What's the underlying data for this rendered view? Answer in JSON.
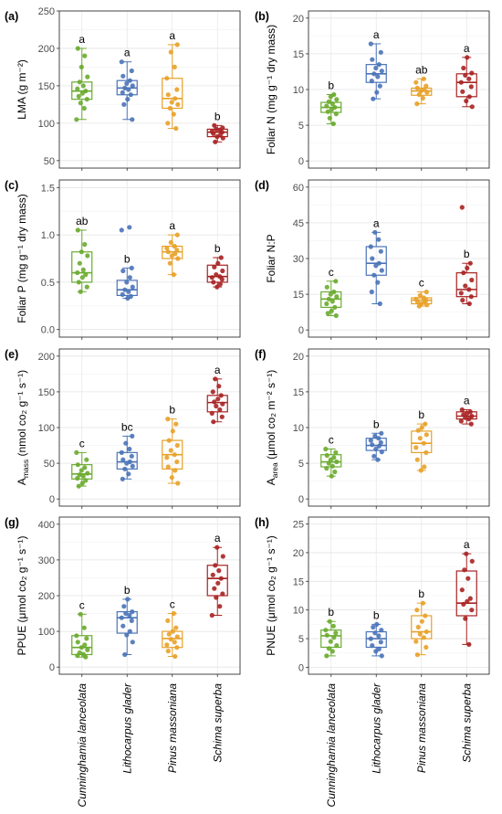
{
  "species": [
    "Cunninghamia lanceolata",
    "Lithocarpus glader",
    "Pinus massoniana",
    "Schima superba"
  ],
  "colors": [
    "#6aab2f",
    "#4a73b8",
    "#e8a128",
    "#a82222"
  ],
  "chart_data": [
    {
      "type": "box",
      "panel_label": "(a)",
      "ylabel": "LMA (g m⁻²)",
      "ylim": [
        40,
        250
      ],
      "yticks": [
        50,
        100,
        150,
        200,
        250
      ],
      "categories": [
        "Cunninghamia lanceolata",
        "Lithocarpus glader",
        "Pinus massoniana",
        "Schima superba"
      ],
      "boxes": [
        {
          "min": 105,
          "q1": 132,
          "median": 143,
          "q3": 155,
          "max": 200
        },
        {
          "min": 105,
          "q1": 138,
          "median": 147,
          "q3": 157,
          "max": 182
        },
        {
          "min": 93,
          "q1": 120,
          "median": 133,
          "q3": 160,
          "max": 205
        },
        {
          "min": 75,
          "q1": 82,
          "median": 88,
          "q3": 92,
          "max": 97
        }
      ],
      "letters": [
        "a",
        "a",
        "a",
        "b"
      ],
      "points": [
        [
          105,
          120,
          127,
          132,
          136,
          140,
          143,
          146,
          150,
          155,
          162,
          175,
          190,
          200
        ],
        [
          105,
          125,
          132,
          138,
          141,
          145,
          147,
          150,
          153,
          157,
          163,
          170,
          182
        ],
        [
          93,
          100,
          112,
          120,
          125,
          128,
          133,
          138,
          145,
          160,
          175,
          195,
          205
        ],
        [
          75,
          80,
          82,
          84,
          86,
          88,
          89,
          91,
          92,
          94,
          97
        ]
      ]
    },
    {
      "type": "box",
      "panel_label": "(b)",
      "ylabel": "Foliar N (mg g⁻¹ dry mass)",
      "ylim": [
        -1,
        21
      ],
      "yticks": [
        0,
        5,
        10,
        15,
        20
      ],
      "categories": [
        "Cunninghamia lanceolata",
        "Lithocarpus glader",
        "Pinus massoniana",
        "Schima superba"
      ],
      "boxes": [
        {
          "min": 5.2,
          "q1": 6.8,
          "median": 7.5,
          "q3": 8.2,
          "max": 9.3
        },
        {
          "min": 8.7,
          "q1": 11,
          "median": 12.2,
          "q3": 13.5,
          "max": 16.4
        },
        {
          "min": 8,
          "q1": 9.2,
          "median": 9.8,
          "q3": 10.2,
          "max": 11.5
        },
        {
          "min": 7.6,
          "q1": 9,
          "median": 11,
          "q3": 12.2,
          "max": 14.5
        }
      ],
      "letters": [
        "b",
        "a",
        "ab",
        "a"
      ],
      "points": [
        [
          5.2,
          6.0,
          6.6,
          6.9,
          7.2,
          7.5,
          7.7,
          8.0,
          8.3,
          8.6,
          9.0,
          9.3
        ],
        [
          8.7,
          9.6,
          10.5,
          11.2,
          11.8,
          12.2,
          12.6,
          13.0,
          13.5,
          14.2,
          15.2,
          16.4
        ],
        [
          8.0,
          8.8,
          9.3,
          9.6,
          9.8,
          10.0,
          10.2,
          10.5,
          11.0,
          11.5
        ],
        [
          7.6,
          8.4,
          9.0,
          9.7,
          10.4,
          11.0,
          11.5,
          12.0,
          12.3,
          13.0,
          14.5
        ]
      ]
    },
    {
      "type": "box",
      "panel_label": "(c)",
      "ylabel": "Foliar P (mg g⁻¹ dry mass)",
      "ylim": [
        -0.08,
        1.58
      ],
      "yticks": [
        0.0,
        0.5,
        1.0,
        1.5
      ],
      "categories": [
        "Cunninghamia lanceolata",
        "Lithocarpus glader",
        "Pinus massoniana",
        "Schima superba"
      ],
      "boxes": [
        {
          "min": 0.4,
          "q1": 0.5,
          "median": 0.6,
          "q3": 0.82,
          "max": 1.05
        },
        {
          "min": 0.33,
          "q1": 0.36,
          "median": 0.42,
          "q3": 0.52,
          "max": 0.65
        },
        {
          "min": 0.58,
          "q1": 0.75,
          "median": 0.82,
          "q3": 0.88,
          "max": 1.0
        },
        {
          "min": 0.45,
          "q1": 0.5,
          "median": 0.56,
          "q3": 0.68,
          "max": 0.76
        }
      ],
      "letters": [
        "ab",
        "b",
        "a",
        "b"
      ],
      "points": [
        [
          0.4,
          0.45,
          0.5,
          0.55,
          0.58,
          0.6,
          0.63,
          0.7,
          0.78,
          0.82,
          0.9,
          1.05
        ],
        [
          0.33,
          0.35,
          0.37,
          0.4,
          0.42,
          0.45,
          0.5,
          0.55,
          0.62,
          0.65,
          1.05,
          1.08
        ],
        [
          0.58,
          0.7,
          0.75,
          0.78,
          0.8,
          0.82,
          0.84,
          0.86,
          0.88,
          0.92,
          1.0
        ],
        [
          0.45,
          0.48,
          0.5,
          0.53,
          0.55,
          0.56,
          0.58,
          0.62,
          0.66,
          0.7,
          0.76
        ]
      ]
    },
    {
      "type": "box",
      "panel_label": "(d)",
      "ylabel": "Foliar N:P",
      "ylim": [
        -3,
        63
      ],
      "yticks": [
        0,
        15,
        30,
        45,
        60
      ],
      "categories": [
        "Cunninghamia lanceolata",
        "Lithocarpus glader",
        "Pinus massoniana",
        "Schima superba"
      ],
      "boxes": [
        {
          "min": 6,
          "q1": 9.5,
          "median": 13,
          "q3": 16,
          "max": 20.5
        },
        {
          "min": 11,
          "q1": 23,
          "median": 28,
          "q3": 35,
          "max": 41
        },
        {
          "min": 10,
          "q1": 11,
          "median": 12.5,
          "q3": 13.5,
          "max": 16
        },
        {
          "min": 11,
          "q1": 14,
          "median": 17,
          "q3": 24,
          "max": 28
        }
      ],
      "letters": [
        "c",
        "a",
        "c",
        "b"
      ],
      "points": [
        [
          6,
          7,
          8,
          9.5,
          11,
          12,
          13,
          14,
          15,
          16,
          18,
          20.5
        ],
        [
          11,
          16,
          20,
          23,
          25,
          27,
          28,
          30,
          33,
          35,
          38,
          41
        ],
        [
          10,
          10.5,
          11,
          11.5,
          12,
          12.5,
          13,
          13.5,
          14.5,
          16
        ],
        [
          11,
          12.5,
          14,
          15.5,
          17,
          18.5,
          21,
          24,
          26,
          28,
          51.5
        ]
      ]
    },
    {
      "type": "box",
      "panel_label": "(e)",
      "ylabel": "A_mass (nmol co₂ g⁻¹ s⁻¹)",
      "ylim": [
        -10,
        210
      ],
      "yticks": [
        0,
        50,
        100,
        150,
        200
      ],
      "categories": [
        "Cunninghamia lanceolata",
        "Lithocarpus glader",
        "Pinus massoniana",
        "Schima superba"
      ],
      "boxes": [
        {
          "min": 18,
          "q1": 28,
          "median": 35,
          "q3": 48,
          "max": 65
        },
        {
          "min": 28,
          "q1": 42,
          "median": 52,
          "q3": 65,
          "max": 88
        },
        {
          "min": 22,
          "q1": 42,
          "median": 62,
          "q3": 82,
          "max": 112
        },
        {
          "min": 108,
          "q1": 122,
          "median": 135,
          "q3": 145,
          "max": 168
        }
      ],
      "letters": [
        "c",
        "bc",
        "b",
        "a"
      ],
      "points": [
        [
          18,
          22,
          26,
          29,
          32,
          34,
          36,
          40,
          44,
          48,
          55,
          65
        ],
        [
          28,
          35,
          42,
          46,
          50,
          52,
          55,
          60,
          65,
          70,
          78,
          88
        ],
        [
          22,
          30,
          40,
          45,
          52,
          58,
          62,
          68,
          75,
          82,
          95,
          105,
          112
        ],
        [
          108,
          115,
          120,
          125,
          130,
          133,
          136,
          140,
          145,
          150,
          158,
          168
        ]
      ]
    },
    {
      "type": "box",
      "panel_label": "(f)",
      "ylabel": "A_area (μmol co₂ m⁻² s⁻¹)",
      "ylim": [
        -1,
        21
      ],
      "yticks": [
        0,
        5,
        10,
        15,
        20
      ],
      "categories": [
        "Cunninghamia lanceolata",
        "Lithocarpus glader",
        "Pinus massoniana",
        "Schima superba"
      ],
      "boxes": [
        {
          "min": 3.2,
          "q1": 4.5,
          "median": 5.2,
          "q3": 6.2,
          "max": 7
        },
        {
          "min": 5.5,
          "q1": 6.8,
          "median": 7.5,
          "q3": 8.5,
          "max": 9.2
        },
        {
          "min": 4,
          "q1": 6.5,
          "median": 7.8,
          "q3": 9.5,
          "max": 10.5
        },
        {
          "min": 10.5,
          "q1": 11.2,
          "median": 11.6,
          "q3": 12.2,
          "max": 12.5
        }
      ],
      "letters": [
        "c",
        "b",
        "b",
        "a"
      ],
      "points": [
        [
          3.2,
          3.8,
          4.3,
          4.6,
          5.0,
          5.2,
          5.5,
          5.8,
          6.1,
          6.5,
          7.0
        ],
        [
          5.5,
          6.0,
          6.6,
          7.0,
          7.4,
          7.6,
          7.9,
          8.2,
          8.5,
          8.8,
          9.2
        ],
        [
          4.0,
          4.5,
          5.5,
          6.5,
          7.2,
          7.8,
          8.5,
          9.0,
          9.6,
          10.0,
          10.5
        ],
        [
          10.5,
          10.9,
          11.2,
          11.4,
          11.6,
          11.8,
          12.0,
          12.2,
          12.5
        ]
      ]
    },
    {
      "type": "box",
      "panel_label": "(g)",
      "ylabel": "PPUE (μmol co₂ g⁻¹ s⁻¹)",
      "ylim": [
        -20,
        420
      ],
      "yticks": [
        0,
        100,
        200,
        300,
        400
      ],
      "categories": [
        "Cunninghamia lanceolata",
        "Lithocarpus glader",
        "Pinus massoniana",
        "Schima superba"
      ],
      "boxes": [
        {
          "min": 28,
          "q1": 35,
          "median": 55,
          "q3": 88,
          "max": 148
        },
        {
          "min": 35,
          "q1": 95,
          "median": 138,
          "q3": 155,
          "max": 190
        },
        {
          "min": 30,
          "q1": 55,
          "median": 80,
          "q3": 100,
          "max": 150
        },
        {
          "min": 145,
          "q1": 200,
          "median": 248,
          "q3": 285,
          "max": 335
        }
      ],
      "letters": [
        "c",
        "b",
        "c",
        "a"
      ],
      "points": [
        [
          28,
          32,
          36,
          40,
          48,
          55,
          62,
          70,
          80,
          88,
          110,
          148
        ],
        [
          35,
          70,
          90,
          100,
          115,
          130,
          138,
          145,
          150,
          155,
          170,
          190
        ],
        [
          30,
          45,
          55,
          62,
          70,
          78,
          85,
          92,
          100,
          110,
          130,
          150
        ],
        [
          145,
          170,
          195,
          205,
          220,
          235,
          248,
          258,
          270,
          285,
          310,
          335
        ]
      ]
    },
    {
      "type": "box",
      "panel_label": "(h)",
      "ylabel": "PNUE (μmol co₂ g⁻¹ s⁻¹)",
      "ylim": [
        -1.2,
        26.2
      ],
      "yticks": [
        0,
        5,
        10,
        15,
        20,
        25
      ],
      "categories": [
        "Cunninghamia lanceolata",
        "Lithocarpus glader",
        "Pinus massoniana",
        "Schima superba"
      ],
      "boxes": [
        {
          "min": 2,
          "q1": 3.5,
          "median": 5.5,
          "q3": 6.5,
          "max": 8
        },
        {
          "min": 2,
          "q1": 3.5,
          "median": 5,
          "q3": 6.2,
          "max": 7.5
        },
        {
          "min": 2.2,
          "q1": 5,
          "median": 6.2,
          "q3": 9,
          "max": 11.2
        },
        {
          "min": 4,
          "q1": 9,
          "median": 11.2,
          "q3": 16.8,
          "max": 19.8
        }
      ],
      "letters": [
        "b",
        "b",
        "b",
        "a"
      ],
      "points": [
        [
          2,
          2.8,
          3.3,
          3.8,
          4.5,
          5.2,
          5.6,
          6.0,
          6.5,
          7.2,
          8.0
        ],
        [
          2,
          2.8,
          3.2,
          3.8,
          4.4,
          5.0,
          5.5,
          6.0,
          6.5,
          7.0,
          7.5
        ],
        [
          2.2,
          3.5,
          4.5,
          5.2,
          5.8,
          6.2,
          7.0,
          8.0,
          9.0,
          10.0,
          11.2
        ],
        [
          4,
          8.5,
          10,
          11,
          11.5,
          12,
          13.5,
          15.5,
          17,
          18.5,
          19.8
        ]
      ]
    }
  ]
}
